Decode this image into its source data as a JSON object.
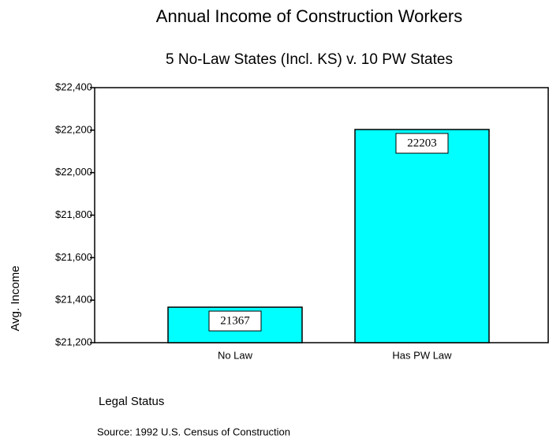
{
  "chart_data": {
    "type": "bar",
    "title": "Annual Income of Construction Workers",
    "subtitle": "5 No-Law States (Incl. KS) v. 10 PW States",
    "y_label": "Avg. Income",
    "x_label": "Legal Status",
    "source": "Source: 1992 U.S. Census of Construction",
    "categories": [
      "No Law",
      "Has PW Law"
    ],
    "values": [
      21367,
      22203
    ],
    "color": "#00ffff",
    "ylim": [
      21200,
      22400
    ],
    "yticks": [
      {
        "value": 21200,
        "label": "$21,200"
      },
      {
        "value": 21400,
        "label": "$21,400"
      },
      {
        "value": 21600,
        "label": "$21,600"
      },
      {
        "value": 21800,
        "label": "$21,800"
      },
      {
        "value": 22000,
        "label": "$22,000"
      },
      {
        "value": 22200,
        "label": "$22,200"
      },
      {
        "value": 22400,
        "label": "$22,400"
      }
    ]
  }
}
